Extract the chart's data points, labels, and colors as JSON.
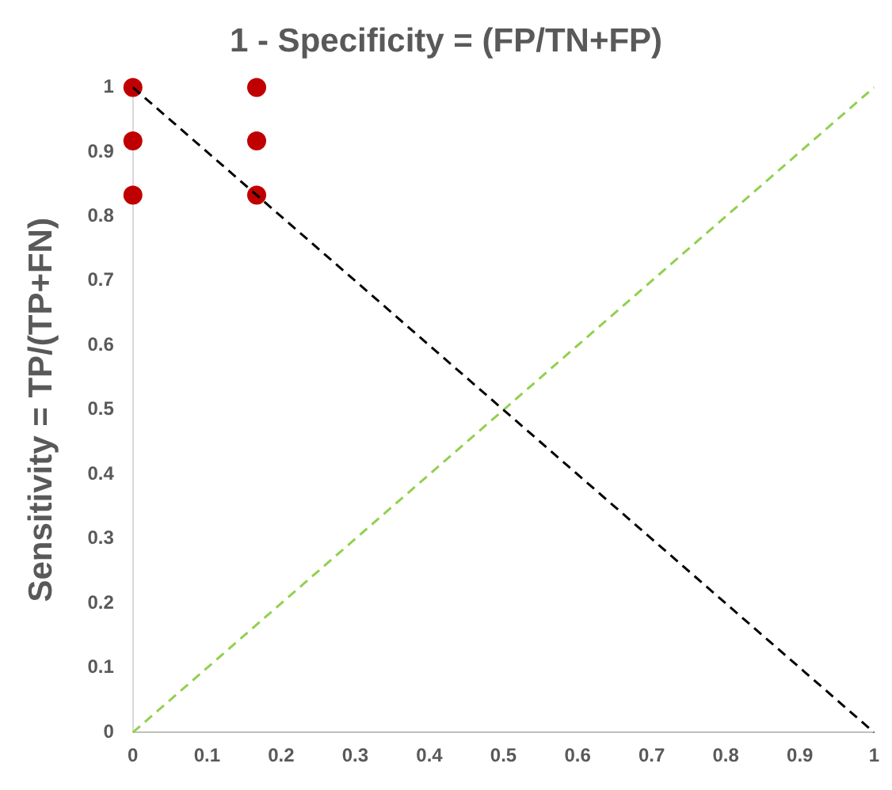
{
  "chart_data": {
    "type": "scatter",
    "xlabel": "1 - Specificity = (FP/TN+FP)",
    "ylabel": "Sensitivity = TP/(TP+FN)",
    "xlim": [
      0,
      1
    ],
    "ylim": [
      0,
      1
    ],
    "xticks": [
      0,
      0.1,
      0.2,
      0.3,
      0.4,
      0.5,
      0.6,
      0.7,
      0.8,
      0.9,
      1
    ],
    "yticks": [
      0,
      0.1,
      0.2,
      0.3,
      0.4,
      0.5,
      0.6,
      0.7,
      0.8,
      0.9,
      1
    ],
    "grid": false,
    "legend": false,
    "marker": "circle",
    "series": [
      {
        "type": "line",
        "color": "#000000",
        "line_style": "dashed",
        "marker": "none",
        "x": [
          0,
          1
        ],
        "values": [
          1,
          0
        ]
      },
      {
        "type": "line",
        "color": "#92d050",
        "line_style": "dashed",
        "marker": "none",
        "x": [
          0,
          1
        ],
        "values": [
          0,
          1
        ]
      },
      {
        "color": "#c00000",
        "x": [
          0,
          0,
          0,
          0.167,
          0.167,
          0.167
        ],
        "values": [
          1,
          0.917,
          0.833,
          1,
          0.917,
          0.833
        ]
      }
    ]
  }
}
